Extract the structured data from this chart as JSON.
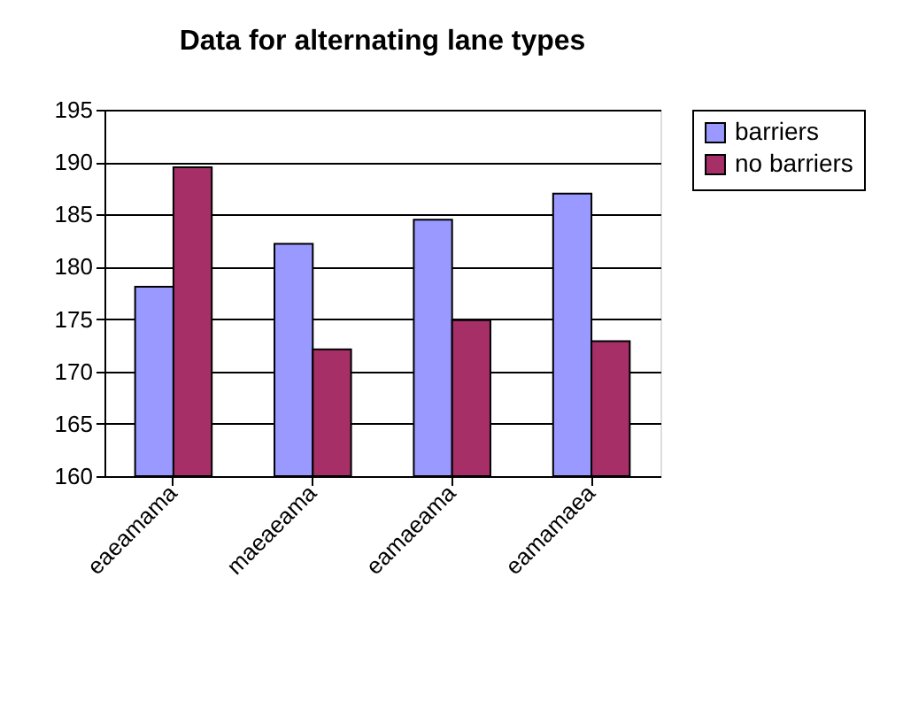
{
  "chart_data": {
    "type": "bar",
    "title": "Data for alternating lane types",
    "categories": [
      "eaeamama",
      "maeaeama",
      "eamaeama",
      "eamamaea"
    ],
    "series": [
      {
        "name": "barriers",
        "color": "#9999ff",
        "values": [
          178.1,
          182.2,
          184.5,
          187.0
        ]
      },
      {
        "name": "no barriers",
        "color": "#a52f66",
        "values": [
          189.5,
          172.1,
          174.9,
          172.9
        ]
      }
    ],
    "ylim": [
      160,
      195
    ],
    "yticks": [
      160,
      165,
      170,
      175,
      180,
      185,
      190,
      195
    ],
    "grid": "y",
    "legend": "right"
  }
}
